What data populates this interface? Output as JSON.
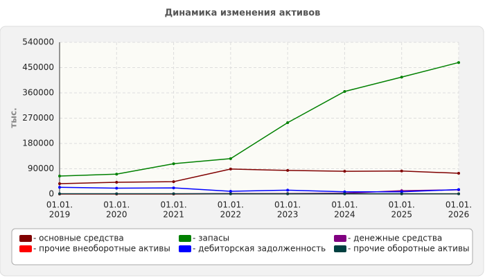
{
  "chart_data": {
    "type": "line",
    "title": "Динамика изменения активов",
    "y_label": "тыс.",
    "categories": [
      [
        "01.01.",
        "2019"
      ],
      [
        "01.01.",
        "2020"
      ],
      [
        "01.01.",
        "2021"
      ],
      [
        "01.01.",
        "2022"
      ],
      [
        "01.01.",
        "2023"
      ],
      [
        "01.01.",
        "2024"
      ],
      [
        "01.01.",
        "2025"
      ],
      [
        "01.01.",
        "2026"
      ]
    ],
    "series": [
      {
        "name": "- основные средства",
        "color": "#800000",
        "values": [
          37000,
          42000,
          44000,
          89000,
          84000,
          81000,
          82000,
          74000
        ]
      },
      {
        "name": "- запасы",
        "color": "#008000",
        "values": [
          64000,
          71000,
          108000,
          126000,
          254000,
          365000,
          416000,
          468000
        ]
      },
      {
        "name": "- денежные средства",
        "color": "#800080",
        "values": [
          1000,
          1000,
          1000,
          2000,
          2000,
          3000,
          12000,
          15000
        ]
      },
      {
        "name": "- прочие внеоборотные активы",
        "color": "#ff0000",
        "values": [
          0,
          0,
          0,
          1000,
          1000,
          1000,
          1000,
          1000
        ]
      },
      {
        "name": "- дебиторская задолженность",
        "color": "#0000ff",
        "values": [
          24000,
          21000,
          22000,
          10000,
          14000,
          8000,
          8000,
          16000
        ]
      },
      {
        "name": "- прочие оборотные активы",
        "color": "#004040",
        "values": [
          1000,
          1000,
          1000,
          1000,
          1000,
          1000,
          1000,
          1000
        ]
      }
    ],
    "ylim": [
      0,
      540000
    ],
    "yticks": [
      0,
      90000,
      180000,
      270000,
      360000,
      450000,
      540000
    ],
    "grid": true
  }
}
